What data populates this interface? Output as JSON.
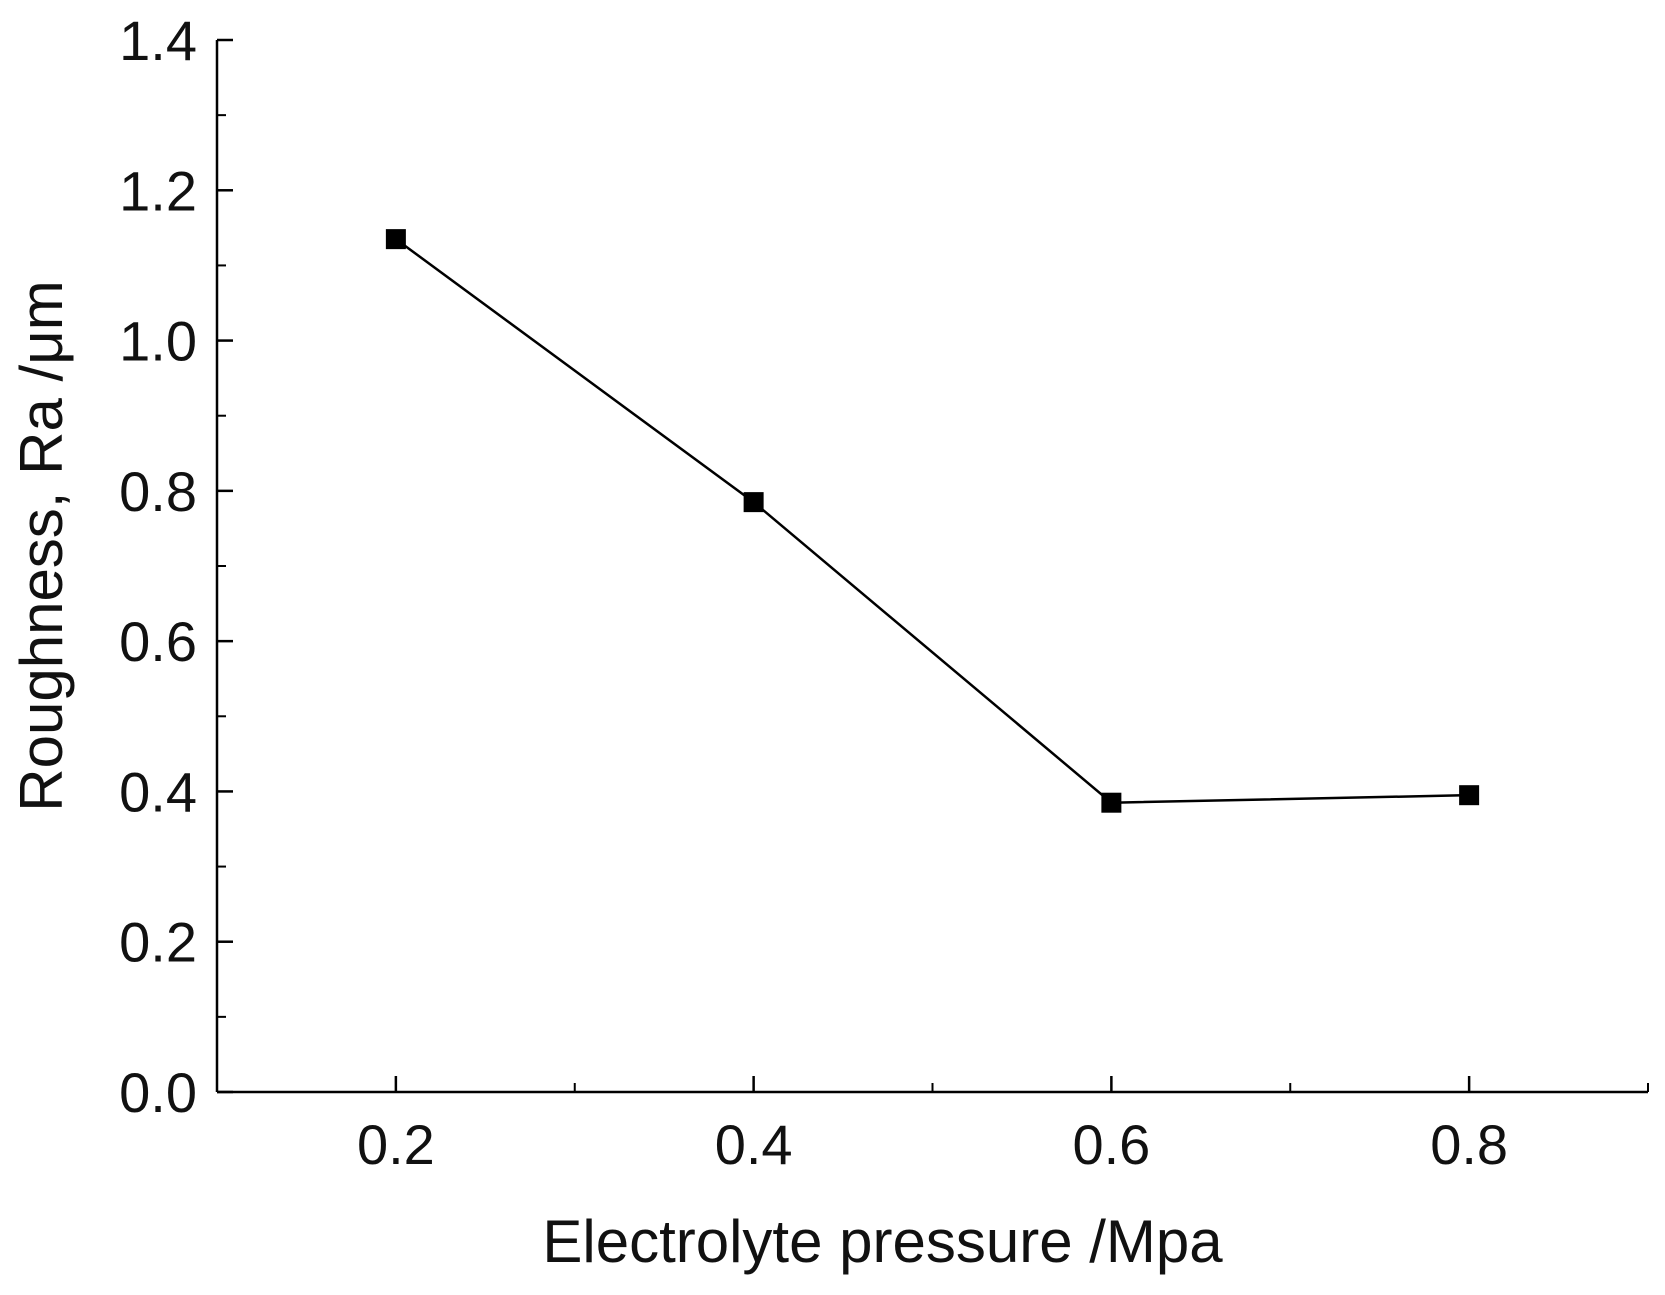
{
  "chart_data": {
    "type": "line",
    "title": "",
    "xlabel": "Electrolyte pressure /Mpa",
    "ylabel": "Roughness, Ra /μm",
    "xlim": [
      0.1,
      0.9
    ],
    "ylim": [
      0.0,
      1.4
    ],
    "x_ticks": [
      0.2,
      0.4,
      0.6,
      0.8
    ],
    "x_tick_labels": [
      "0.2",
      "0.4",
      "0.6",
      "0.8"
    ],
    "x_minor_ticks": [
      0.3,
      0.5,
      0.7
    ],
    "y_ticks": [
      0.0,
      0.2,
      0.4,
      0.6,
      0.8,
      1.0,
      1.2,
      1.4
    ],
    "y_tick_labels": [
      "0.0",
      "0.2",
      "0.4",
      "0.6",
      "0.8",
      "1.0",
      "1.2",
      "1.4"
    ],
    "y_minor_ticks": [
      0.1,
      0.3,
      0.5,
      0.7,
      0.9,
      1.1,
      1.3
    ],
    "grid": false,
    "series": [
      {
        "name": "Roughness",
        "x": [
          0.2,
          0.4,
          0.6,
          0.8
        ],
        "y": [
          1.135,
          0.785,
          0.385,
          0.395
        ],
        "marker": "square",
        "color": "#000000"
      }
    ]
  }
}
